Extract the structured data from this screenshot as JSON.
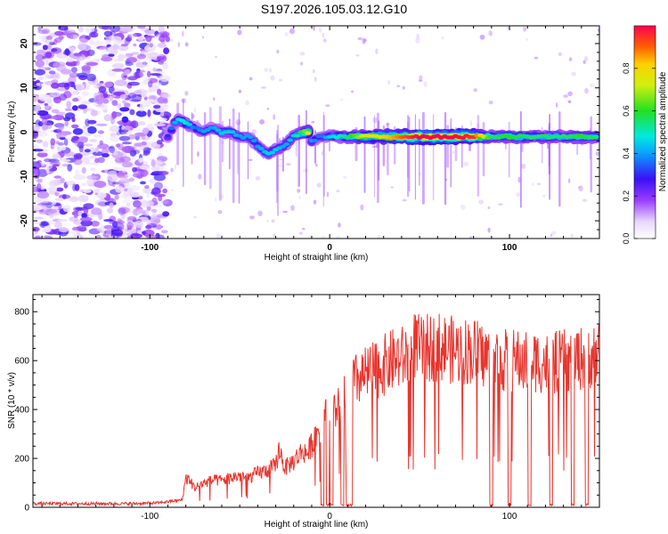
{
  "title": "S197.2026.105.03.12.G10",
  "chart_data": [
    {
      "type": "heatmap",
      "xlabel": "Height of straight line (km)",
      "ylabel": "Frequency (Hz)",
      "xlim": [
        -165,
        150
      ],
      "ylim": [
        -24,
        24
      ],
      "x_ticks": [
        -100,
        0,
        100
      ],
      "y_ticks": [
        -20,
        -10,
        0,
        10,
        20
      ],
      "noise_region": [
        -165,
        -90
      ],
      "ridge": {
        "x": [
          -90,
          -85,
          -80,
          -75,
          -70,
          -65,
          -60,
          -55,
          -50,
          -45,
          -40,
          -35,
          -30,
          -25,
          -20,
          -15,
          -12,
          -10,
          -5,
          0,
          10,
          20,
          30,
          40,
          50,
          60,
          70,
          80,
          90,
          100,
          110,
          120,
          130,
          140,
          148
        ],
        "freq": [
          -1,
          3,
          2,
          1,
          0,
          1,
          0,
          0,
          -1,
          -1,
          -3,
          -5,
          -4,
          -3,
          -1,
          0,
          0,
          -2,
          -1,
          -1,
          -1,
          -1,
          -1,
          -1,
          -1,
          -1,
          -1,
          -1,
          -1,
          -1,
          -1,
          -1,
          -1,
          -1,
          -1
        ],
        "amplitude": [
          0.3,
          0.45,
          0.5,
          0.35,
          0.4,
          0.4,
          0.45,
          0.45,
          0.4,
          0.4,
          0.4,
          0.45,
          0.45,
          0.4,
          0.45,
          0.6,
          0.75,
          0.4,
          0.35,
          0.45,
          0.55,
          0.75,
          0.8,
          0.9,
          1.0,
          1.0,
          1.0,
          0.95,
          0.55,
          0.6,
          0.55,
          0.55,
          0.55,
          0.6,
          0.55
        ]
      },
      "colorbar": {
        "label": "Normalized spectral amplitude",
        "range": [
          0.0,
          1.0
        ],
        "ticks": [
          0.0,
          0.2,
          0.4,
          0.6,
          0.8
        ],
        "tick_labels": [
          "0.0",
          "0.2",
          "0.4",
          "0.6",
          "0.8"
        ]
      }
    },
    {
      "type": "line",
      "xlabel": "Height of straight line (km)",
      "ylabel": "SNR (10 * v/v)",
      "xlim": [
        -165,
        150
      ],
      "ylim": [
        0,
        870
      ],
      "x_ticks": [
        -100,
        0,
        100
      ],
      "y_ticks": [
        0,
        200,
        400,
        600,
        800
      ],
      "color": "#e8352e",
      "series": [
        {
          "name": "SNR",
          "x": [
            -165,
            -150,
            -130,
            -110,
            -95,
            -88,
            -82,
            -80,
            -78,
            -75,
            -70,
            -65,
            -60,
            -55,
            -50,
            -45,
            -40,
            -35,
            -30,
            -28,
            -25,
            -20,
            -15,
            -12,
            -10,
            -8,
            -5,
            -2,
            0,
            5,
            10,
            15,
            20,
            25,
            30,
            35,
            40,
            45,
            48,
            50,
            55,
            60,
            65,
            70,
            75,
            80,
            85,
            90,
            95,
            100,
            105,
            110,
            115,
            120,
            125,
            130,
            135,
            140,
            145,
            150
          ],
          "y": [
            15,
            15,
            15,
            15,
            18,
            25,
            30,
            120,
            110,
            80,
            100,
            110,
            110,
            120,
            130,
            120,
            140,
            150,
            170,
            240,
            160,
            190,
            230,
            220,
            260,
            300,
            340,
            370,
            360,
            420,
            480,
            520,
            540,
            560,
            580,
            600,
            610,
            620,
            680,
            640,
            650,
            660,
            650,
            640,
            640,
            640,
            620,
            610,
            600,
            600,
            600,
            590,
            600,
            590,
            590,
            600,
            600,
            610,
            620,
            630
          ],
          "dropouts": [
            [
              -4,
              0
            ],
            [
              -1,
              0
            ],
            [
              1,
              0
            ],
            [
              7,
              0
            ],
            [
              10,
              0
            ],
            [
              12,
              0
            ],
            [
              90,
              0
            ],
            [
              100,
              0
            ],
            [
              111,
              0
            ],
            [
              123,
              0
            ],
            [
              135,
              0
            ],
            [
              143,
              0
            ]
          ]
        }
      ]
    }
  ]
}
